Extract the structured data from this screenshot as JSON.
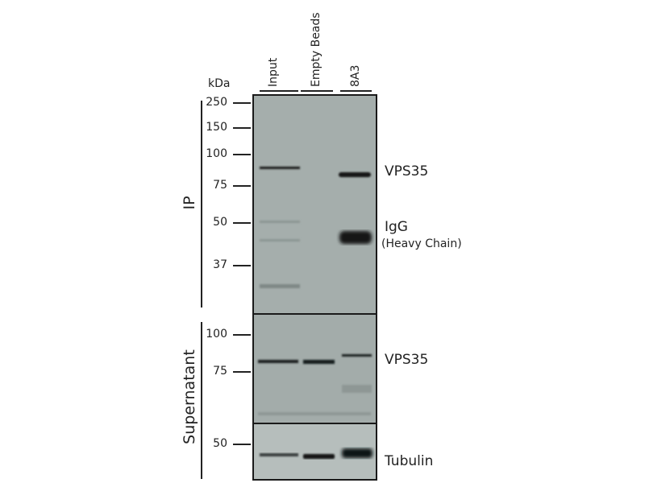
{
  "unit_label": "kDa",
  "lanes": [
    "Input",
    "Empty Beads",
    "8A3"
  ],
  "panels": {
    "ip": {
      "label": "IP",
      "markers": [
        "250",
        "150",
        "100",
        "75",
        "50",
        "37"
      ],
      "band_labels": [
        "VPS35",
        "IgG",
        "(Heavy Chain)"
      ]
    },
    "supernatant": {
      "label": "Supernatant",
      "markers": [
        "100",
        "75"
      ],
      "band_labels": [
        "VPS35"
      ]
    },
    "tubulin": {
      "markers": [
        "50"
      ],
      "band_labels": [
        "Tubulin"
      ]
    }
  },
  "colors": {
    "membrane": "#a6afad",
    "band": "#151a1a"
  }
}
